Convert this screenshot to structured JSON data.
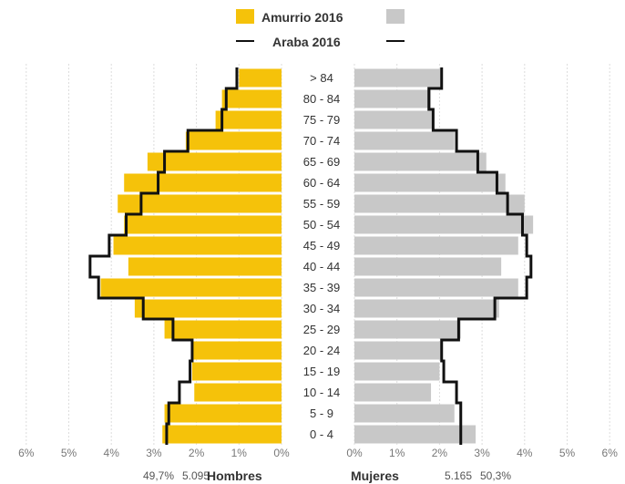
{
  "chart_data": {
    "type": "bar",
    "orientation": "population-pyramid",
    "legend": {
      "placement": "top-center",
      "entries": [
        {
          "label": "Amurrio 2016",
          "symbol": "bar",
          "colors": [
            "#f5c20a",
            "#c8c8c8"
          ]
        },
        {
          "label": "Araba 2016",
          "symbol": "line",
          "color": "#111111"
        }
      ]
    },
    "categories": [
      ">  84",
      "80 - 84",
      "75 - 79",
      "70 - 74",
      "65 - 69",
      "60 - 64",
      "55 - 59",
      "50 - 54",
      "45 - 49",
      "40 - 44",
      "35 - 39",
      "30 - 34",
      "25 - 29",
      "20 - 24",
      "15 - 19",
      "10 - 14",
      "5 - 9",
      "0 - 4"
    ],
    "series": [
      {
        "name": "Hombres",
        "side": "left",
        "color": "#f5c20a",
        "values": [
          1.0,
          1.4,
          1.55,
          2.25,
          3.15,
          3.7,
          3.85,
          3.7,
          3.95,
          3.6,
          4.25,
          3.45,
          2.75,
          2.1,
          2.1,
          2.05,
          2.75,
          2.8
        ]
      },
      {
        "name": "Mujeres",
        "side": "right",
        "color": "#c8c8c8",
        "values": [
          2.05,
          1.8,
          1.85,
          2.35,
          3.1,
          3.55,
          4.0,
          4.2,
          3.85,
          3.45,
          3.85,
          3.4,
          2.5,
          2.05,
          2.0,
          1.8,
          2.35,
          2.85
        ]
      },
      {
        "name": "Araba 2016 Hombres",
        "side": "left",
        "style": "step-line",
        "color": "#111111",
        "values": [
          1.05,
          1.3,
          1.4,
          2.2,
          2.75,
          2.9,
          3.3,
          3.65,
          4.05,
          4.5,
          4.3,
          3.25,
          2.55,
          2.1,
          2.15,
          2.4,
          2.65,
          2.7
        ]
      },
      {
        "name": "Araba 2016 Mujeres",
        "side": "right",
        "style": "step-line",
        "color": "#111111",
        "values": [
          2.05,
          1.75,
          1.85,
          2.4,
          2.9,
          3.35,
          3.6,
          3.95,
          4.05,
          4.15,
          4.05,
          3.3,
          2.45,
          2.05,
          2.1,
          2.4,
          2.5,
          2.5
        ]
      }
    ],
    "x_ticks": [
      "6%",
      "5%",
      "4%",
      "3%",
      "2%",
      "1%",
      "0%",
      "0%",
      "1%",
      "2%",
      "3%",
      "4%",
      "5%",
      "6%"
    ],
    "xlim": [
      0,
      6
    ],
    "grid": true,
    "summary": {
      "left": {
        "percent": "49,7%",
        "count": "5.095",
        "label": "Hombres"
      },
      "right": {
        "label": "Mujeres",
        "count": "5.165",
        "percent": "50,3%"
      }
    }
  }
}
